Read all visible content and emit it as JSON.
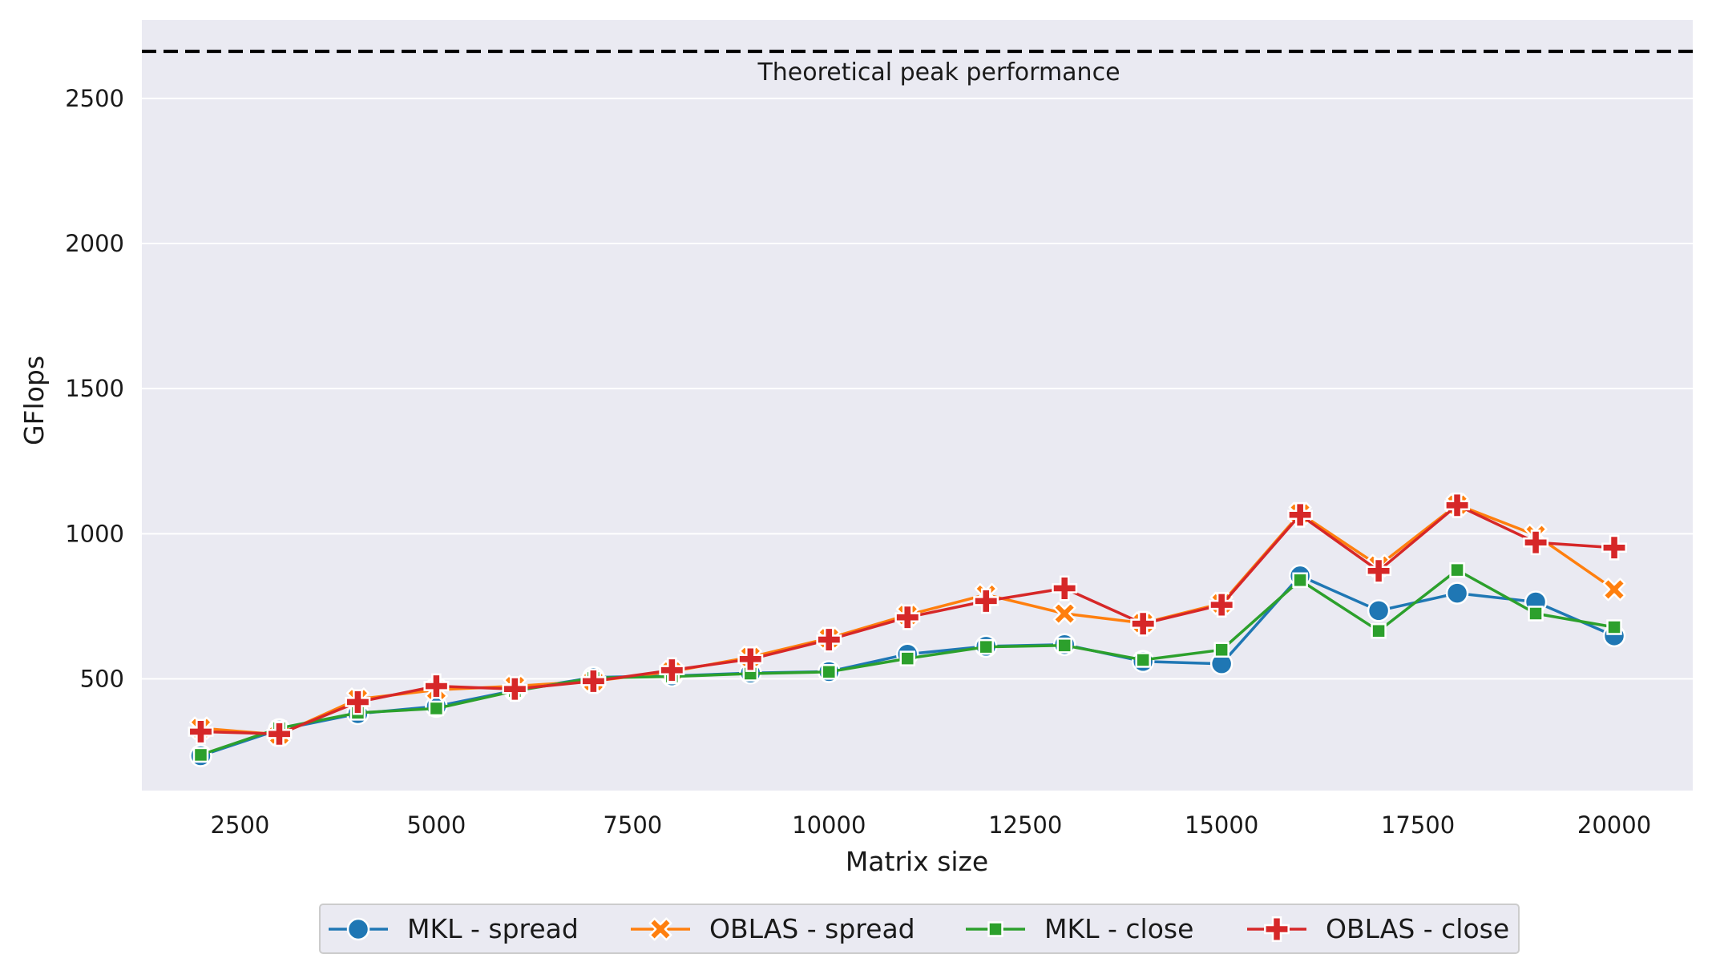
{
  "chart_data": {
    "type": "line",
    "title": "",
    "xlabel": "Matrix size",
    "ylabel": "GFlops",
    "xlim": [
      1250,
      21000
    ],
    "ylim": [
      115,
      2770
    ],
    "xticks": [
      2500,
      5000,
      7500,
      10000,
      12500,
      15000,
      17500,
      20000
    ],
    "yticks": [
      500,
      1000,
      1500,
      2000,
      2500
    ],
    "grid": true,
    "legend_position": "bottom-center",
    "x": [
      2000,
      3000,
      4000,
      5000,
      6000,
      7000,
      8000,
      9000,
      10000,
      11000,
      12000,
      13000,
      14000,
      15000,
      16000,
      17000,
      18000,
      19000,
      20000
    ],
    "series": [
      {
        "name": "MKL - spread",
        "color": "#1f77b4",
        "marker": "circle",
        "values": [
          235,
          325,
          380,
          405,
          460,
          505,
          510,
          520,
          525,
          585,
          612,
          618,
          560,
          552,
          855,
          735,
          795,
          765,
          648
        ]
      },
      {
        "name": "OBLAS - spread",
        "color": "#ff7f0e",
        "marker": "x",
        "values": [
          330,
          308,
          430,
          462,
          475,
          492,
          525,
          575,
          640,
          720,
          790,
          725,
          692,
          760,
          1070,
          890,
          1100,
          995,
          808
        ]
      },
      {
        "name": "MKL - close",
        "color": "#2ca02c",
        "marker": "square",
        "values": [
          238,
          330,
          383,
          398,
          458,
          503,
          508,
          518,
          524,
          570,
          610,
          615,
          565,
          600,
          840,
          665,
          875,
          725,
          678
        ]
      },
      {
        "name": "OBLAS - close",
        "color": "#d62728",
        "marker": "plus",
        "values": [
          318,
          310,
          420,
          475,
          465,
          492,
          530,
          568,
          635,
          712,
          768,
          812,
          690,
          755,
          1065,
          872,
          1098,
          970,
          952
        ]
      }
    ],
    "reference_line": {
      "value": 2662,
      "label": "Theoretical peak performance",
      "style": "dashed",
      "color": "#000000"
    }
  }
}
